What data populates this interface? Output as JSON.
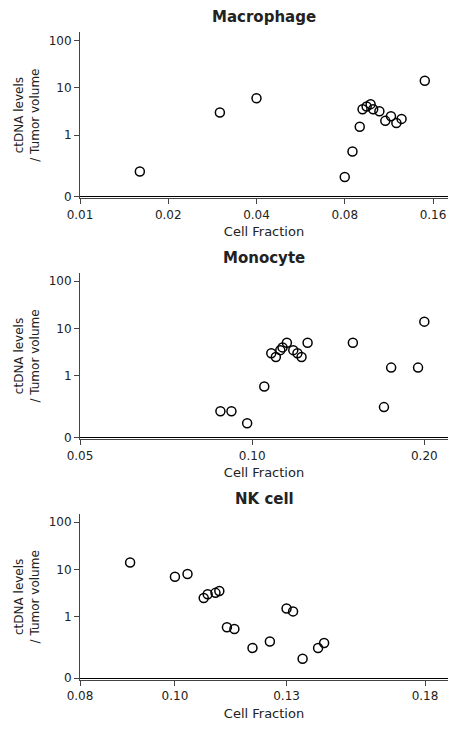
{
  "chart_data": [
    {
      "type": "scatter",
      "title": "Macrophage",
      "x": [
        0.016,
        0.03,
        0.04,
        0.08,
        0.085,
        0.09,
        0.092,
        0.095,
        0.098,
        0.1,
        0.105,
        0.11,
        0.115,
        0.12,
        0.125,
        0.15
      ],
      "values": [
        0.17,
        3.0,
        6.0,
        0.13,
        0.45,
        1.5,
        3.5,
        4.0,
        4.5,
        3.5,
        3.2,
        2.0,
        2.5,
        1.8,
        2.2,
        14.0
      ],
      "xlim": [
        0.01,
        0.18
      ],
      "xticks": [
        0.01,
        0.02,
        0.04,
        0.08,
        0.16
      ],
      "ylim": [
        -0.015,
        150
      ],
      "yticks": [
        0,
        1,
        10,
        100
      ],
      "xlabel": "Cell Fraction",
      "ylabel": "ctDNA levels\n/ Tumor volume",
      "log": true,
      "grid": false,
      "color": "#000000",
      "marker": "circle-open"
    },
    {
      "type": "scatter",
      "title": "Monocyte",
      "x": [
        0.088,
        0.092,
        0.098,
        0.105,
        0.108,
        0.11,
        0.112,
        0.113,
        0.115,
        0.118,
        0.12,
        0.122,
        0.125,
        0.15,
        0.17,
        0.175,
        0.195,
        0.2
      ],
      "values": [
        0.18,
        0.18,
        0.1,
        0.6,
        3.0,
        2.5,
        3.5,
        4.0,
        5.0,
        3.5,
        3.0,
        2.5,
        5.0,
        5.0,
        0.22,
        1.5,
        1.5,
        14.0
      ],
      "xlim": [
        0.05,
        0.22
      ],
      "xticks": [
        0.05,
        {
          "value": 0.1,
          "label": "0.10"
        },
        {
          "value": 0.2,
          "label": "0.20"
        }
      ],
      "ylim": [
        -0.015,
        150
      ],
      "yticks": [
        0,
        1,
        10,
        100
      ],
      "xlabel": "Cell Fraction",
      "ylabel": "ctDNA levels\n/ Tumor volume",
      "log": true,
      "grid": false,
      "color": "#000000",
      "marker": "circle-open"
    },
    {
      "type": "scatter",
      "title": "NK cell",
      "x": [
        0.09,
        0.1,
        0.103,
        0.107,
        0.108,
        0.11,
        0.111,
        0.113,
        0.115,
        0.12,
        0.125,
        0.13,
        0.132,
        0.135,
        0.14,
        0.142
      ],
      "values": [
        14.0,
        7.0,
        8.0,
        2.5,
        3.0,
        3.2,
        3.5,
        0.6,
        0.55,
        0.22,
        0.3,
        1.5,
        1.3,
        0.13,
        0.22,
        0.28
      ],
      "xlim": [
        0.08,
        0.19
      ],
      "xticks": [
        0.08,
        {
          "value": 0.1,
          "label": "0.10"
        },
        0.13,
        0.18
      ],
      "ylim": [
        -0.015,
        150
      ],
      "yticks": [
        0,
        1,
        10,
        100
      ],
      "xlabel": "Cell Fraction",
      "ylabel": "ctDNA levels\n/ Tumor volume",
      "log": true,
      "grid": false,
      "color": "#000000",
      "marker": "circle-open"
    }
  ]
}
